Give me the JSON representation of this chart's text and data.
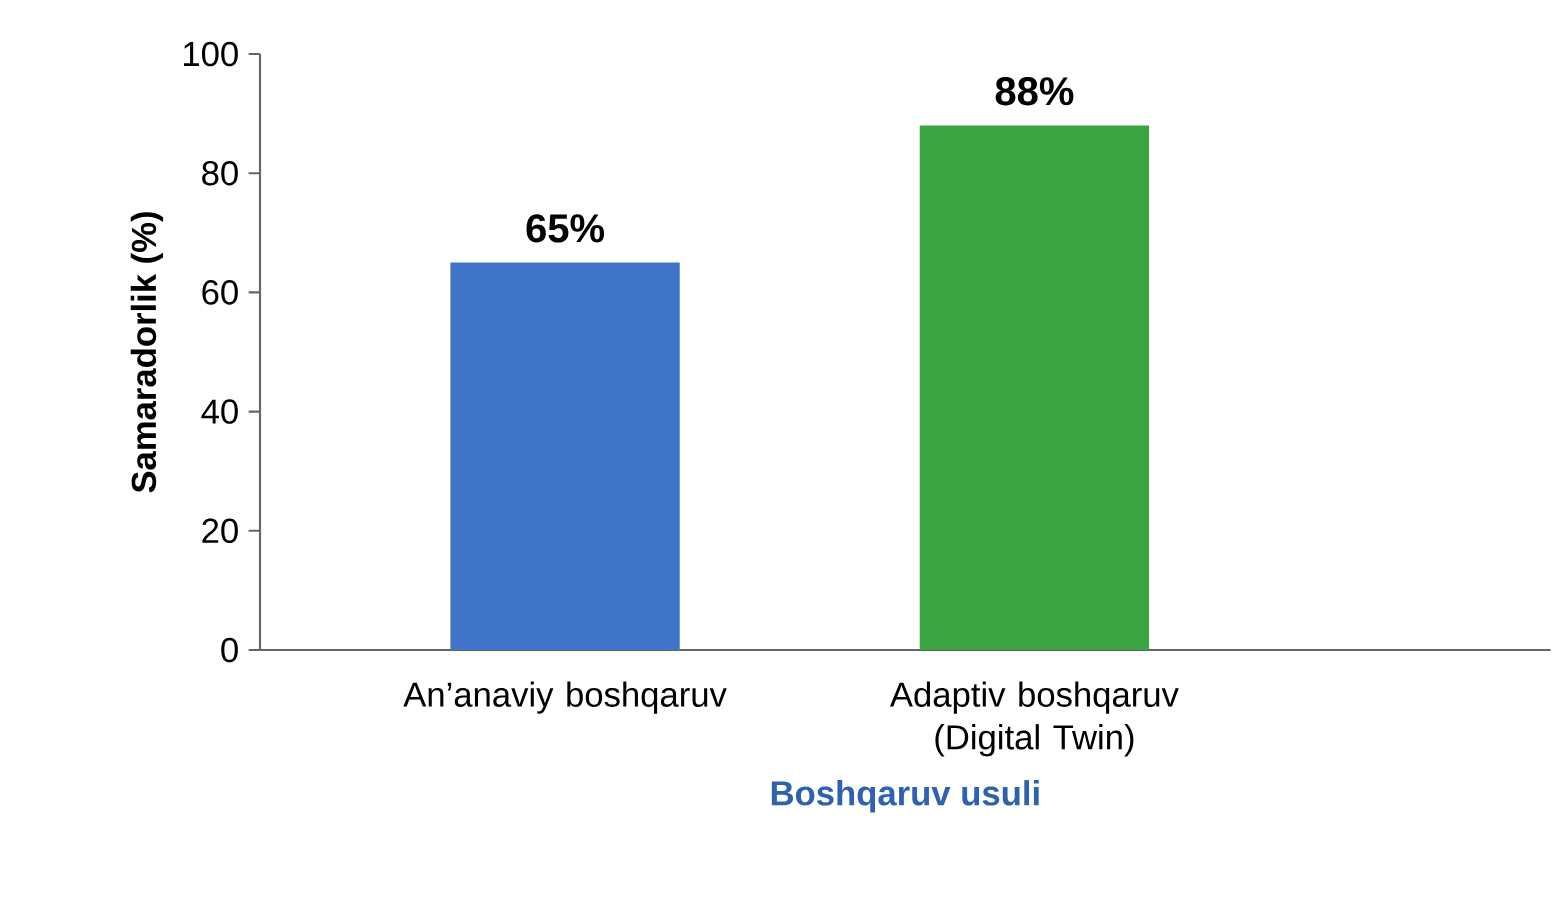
{
  "chart_data": {
    "type": "bar",
    "categories": [
      "An’anaviy boshqaruv",
      "Adaptiv boshqaruv (Digital Twin)"
    ],
    "values": [
      65,
      88
    ],
    "colors": [
      "#3f74c9",
      "#3ba443"
    ],
    "value_labels": [
      "65%",
      "88%"
    ],
    "xlabel": "Boshqaruv usuli",
    "ylabel": "Samaradorlik (%)",
    "ylim": [
      0,
      100
    ],
    "yticks": [
      0,
      20,
      40,
      60,
      80,
      100
    ]
  }
}
